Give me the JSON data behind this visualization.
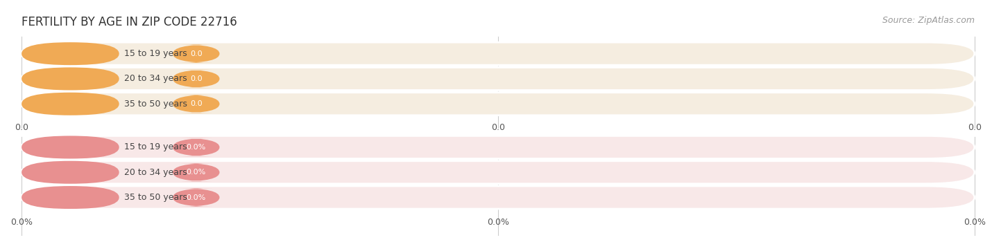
{
  "title": "FERTILITY BY AGE IN ZIP CODE 22716",
  "source": "Source: ZipAtlas.com",
  "top_categories": [
    "15 to 19 years",
    "20 to 34 years",
    "35 to 50 years"
  ],
  "bottom_categories": [
    "15 to 19 years",
    "20 to 34 years",
    "35 to 50 years"
  ],
  "top_labels": [
    "0.0",
    "0.0",
    "0.0"
  ],
  "bottom_labels": [
    "0.0%",
    "0.0%",
    "0.0%"
  ],
  "top_tick_labels": [
    "0.0",
    "0.0",
    "0.0"
  ],
  "bottom_tick_labels": [
    "0.0%",
    "0.0%",
    "0.0%"
  ],
  "top_bg_color": "#F5EDE0",
  "top_accent_color": "#F0AA55",
  "bottom_bg_color": "#F8E8E8",
  "bottom_accent_color": "#E89090",
  "grid_color": "#CCCCCC",
  "bg_color": "#FFFFFF",
  "text_color": "#555555",
  "title_color": "#333333",
  "source_color": "#999999",
  "title_fontsize": 12,
  "source_fontsize": 9,
  "cat_fontsize": 9,
  "val_fontsize": 8,
  "tick_fontsize": 9
}
